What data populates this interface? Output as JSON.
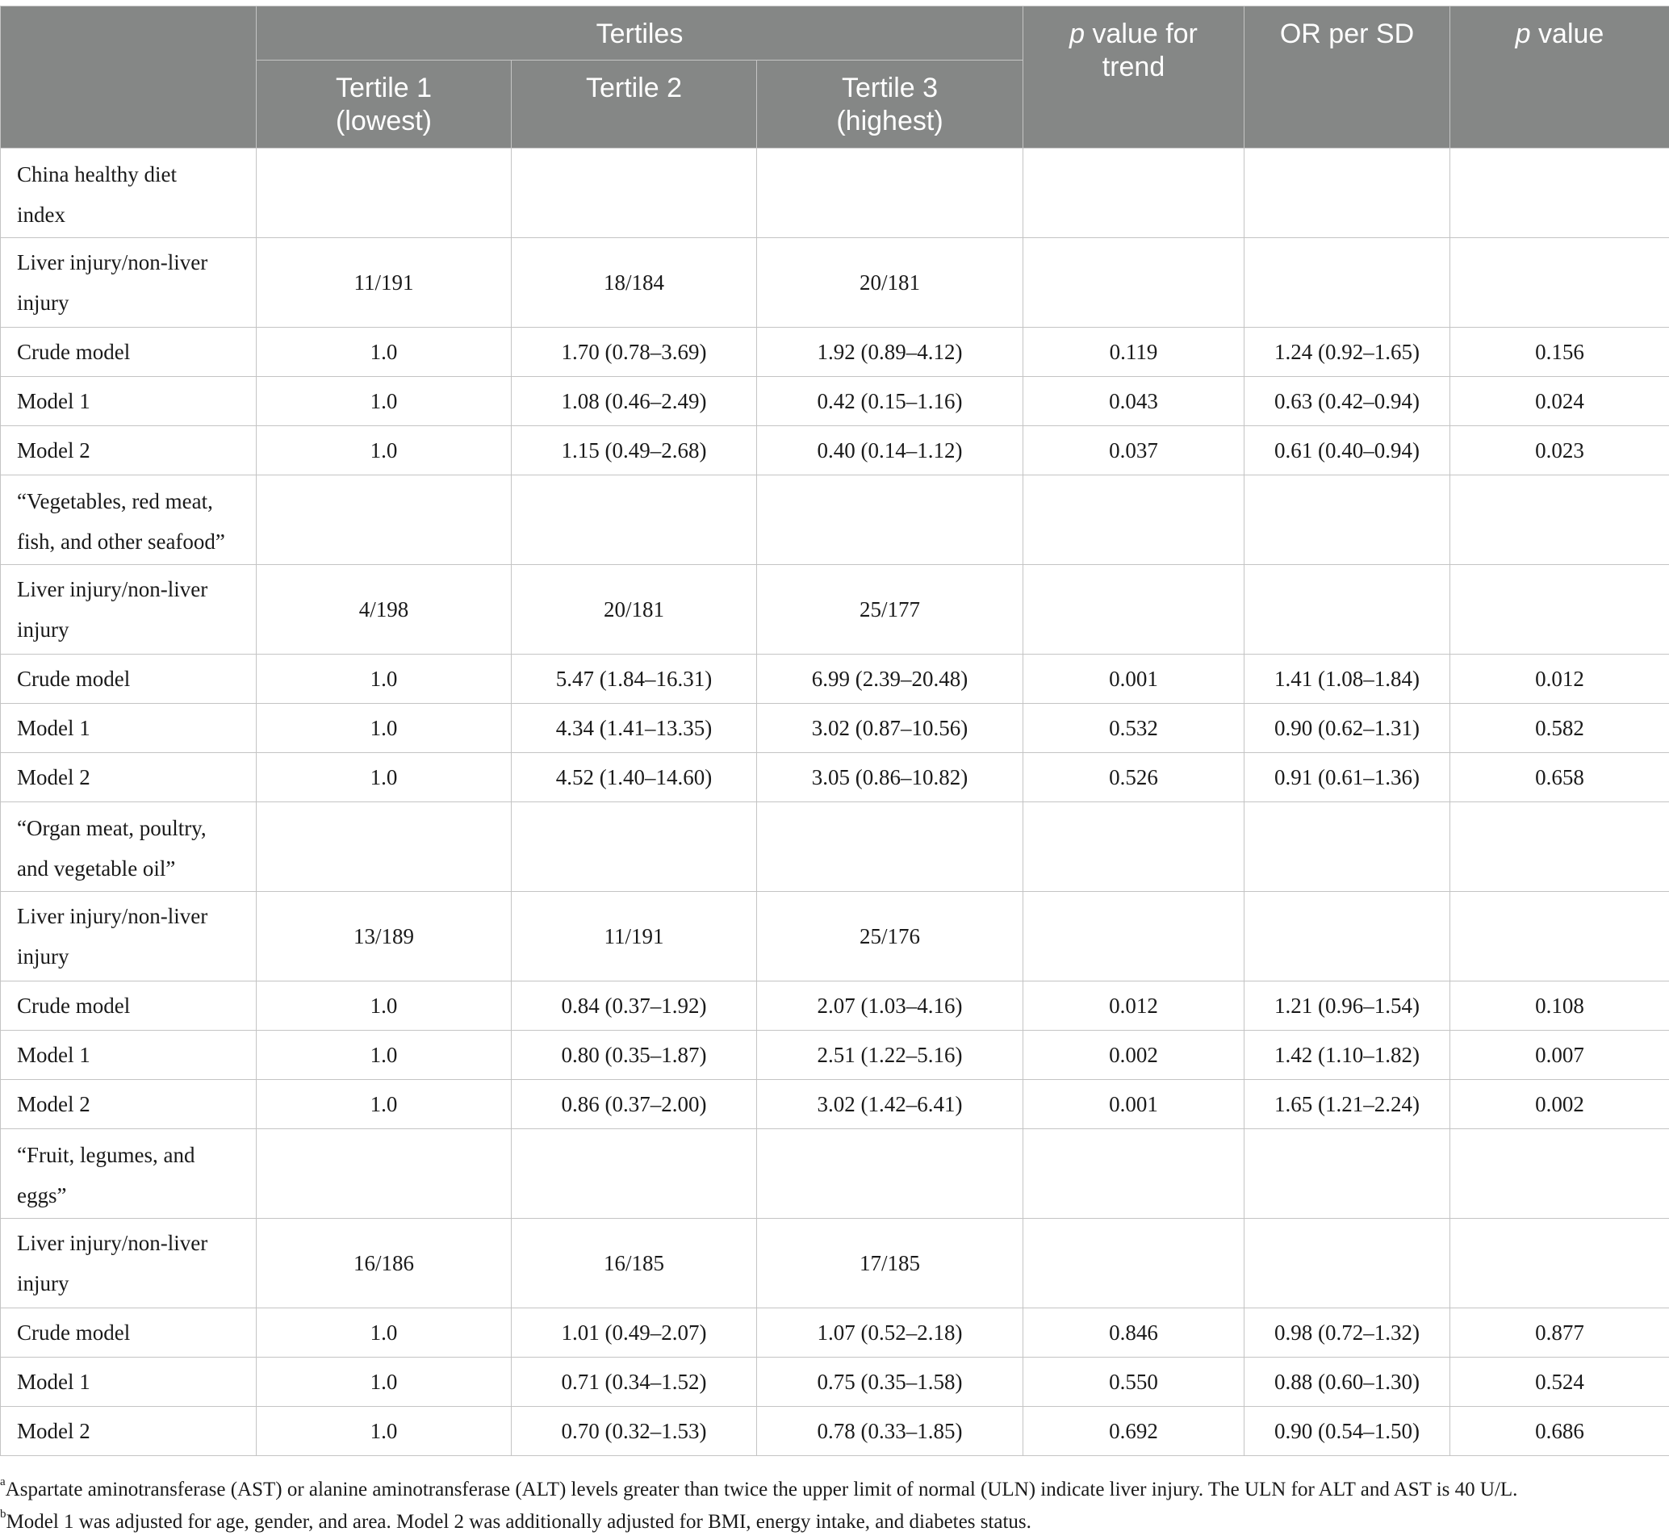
{
  "header": {
    "tertiles": "Tertiles",
    "tertile1_line1": "Tertile 1",
    "tertile1_line2": "(lowest)",
    "tertile2": "Tertile 2",
    "tertile3_line1": "Tertile 3",
    "tertile3_line2": "(highest)",
    "p_trend_italic": "p",
    "p_trend_rest": " value for",
    "p_trend_line2": "trend",
    "or_per_sd": "OR per SD",
    "p_value_italic": "p",
    "p_value_rest": " value"
  },
  "groups": [
    {
      "title_line1": "China healthy diet",
      "title_line2": "index",
      "count": {
        "label_line1": "Liver injury/non-liver",
        "label_line2": "injury",
        "t1": "11/191",
        "t2": "18/184",
        "t3": "20/181"
      },
      "models": [
        {
          "label": "Crude model",
          "t1": "1.0",
          "t2": "1.70 (0.78–3.69)",
          "t3": "1.92 (0.89–4.12)",
          "p_trend": "0.119",
          "or_sd": "1.24 (0.92–1.65)",
          "p": "0.156"
        },
        {
          "label": "Model 1",
          "t1": "1.0",
          "t2": "1.08 (0.46–2.49)",
          "t3": "0.42 (0.15–1.16)",
          "p_trend": "0.043",
          "or_sd": "0.63 (0.42–0.94)",
          "p": "0.024"
        },
        {
          "label": "Model 2",
          "t1": "1.0",
          "t2": "1.15 (0.49–2.68)",
          "t3": "0.40 (0.14–1.12)",
          "p_trend": "0.037",
          "or_sd": "0.61 (0.40–0.94)",
          "p": "0.023"
        }
      ]
    },
    {
      "title_line1": "“Vegetables, red meat,",
      "title_line2": "fish, and other seafood”",
      "count": {
        "label_line1": "Liver injury/non-liver",
        "label_line2": "injury",
        "t1": "4/198",
        "t2": "20/181",
        "t3": "25/177"
      },
      "models": [
        {
          "label": "Crude model",
          "t1": "1.0",
          "t2": "5.47 (1.84–16.31)",
          "t3": "6.99 (2.39–20.48)",
          "p_trend": "0.001",
          "or_sd": "1.41 (1.08–1.84)",
          "p": "0.012"
        },
        {
          "label": "Model 1",
          "t1": "1.0",
          "t2": "4.34 (1.41–13.35)",
          "t3": "3.02 (0.87–10.56)",
          "p_trend": "0.532",
          "or_sd": "0.90 (0.62–1.31)",
          "p": "0.582"
        },
        {
          "label": "Model 2",
          "t1": "1.0",
          "t2": "4.52 (1.40–14.60)",
          "t3": "3.05 (0.86–10.82)",
          "p_trend": "0.526",
          "or_sd": "0.91 (0.61–1.36)",
          "p": "0.658"
        }
      ]
    },
    {
      "title_line1": "“Organ meat, poultry,",
      "title_line2": "and vegetable oil”",
      "count": {
        "label_line1": "Liver injury/non-liver",
        "label_line2": "injury",
        "t1": "13/189",
        "t2": "11/191",
        "t3": "25/176"
      },
      "models": [
        {
          "label": "Crude model",
          "t1": "1.0",
          "t2": "0.84 (0.37–1.92)",
          "t3": "2.07 (1.03–4.16)",
          "p_trend": "0.012",
          "or_sd": "1.21 (0.96–1.54)",
          "p": "0.108"
        },
        {
          "label": "Model 1",
          "t1": "1.0",
          "t2": "0.80 (0.35–1.87)",
          "t3": "2.51 (1.22–5.16)",
          "p_trend": "0.002",
          "or_sd": "1.42 (1.10–1.82)",
          "p": "0.007"
        },
        {
          "label": "Model 2",
          "t1": "1.0",
          "t2": "0.86 (0.37–2.00)",
          "t3": "3.02 (1.42–6.41)",
          "p_trend": "0.001",
          "or_sd": "1.65 (1.21–2.24)",
          "p": "0.002"
        }
      ]
    },
    {
      "title_line1": "“Fruit, legumes, and",
      "title_line2": "eggs”",
      "count": {
        "label_line1": "Liver injury/non-liver",
        "label_line2": "injury",
        "t1": "16/186",
        "t2": "16/185",
        "t3": "17/185"
      },
      "models": [
        {
          "label": "Crude model",
          "t1": "1.0",
          "t2": "1.01 (0.49–2.07)",
          "t3": "1.07 (0.52–2.18)",
          "p_trend": "0.846",
          "or_sd": "0.98 (0.72–1.32)",
          "p": "0.877"
        },
        {
          "label": "Model 1",
          "t1": "1.0",
          "t2": "0.71 (0.34–1.52)",
          "t3": "0.75 (0.35–1.58)",
          "p_trend": "0.550",
          "or_sd": "0.88 (0.60–1.30)",
          "p": "0.524"
        },
        {
          "label": "Model 2",
          "t1": "1.0",
          "t2": "0.70 (0.32–1.53)",
          "t3": "0.78 (0.33–1.85)",
          "p_trend": "0.692",
          "or_sd": "0.90 (0.54–1.50)",
          "p": "0.686"
        }
      ]
    }
  ],
  "footnotes": [
    {
      "marker": "a",
      "text": "Aspartate aminotransferase (AST) or alanine aminotransferase (ALT) levels greater than twice the upper limit of normal (ULN) indicate liver injury. The ULN for ALT and AST is 40 U/L."
    },
    {
      "marker": "b",
      "text": "Model 1 was adjusted for age, gender, and area. Model 2 was additionally adjusted for BMI, energy intake, and diabetes status."
    }
  ]
}
